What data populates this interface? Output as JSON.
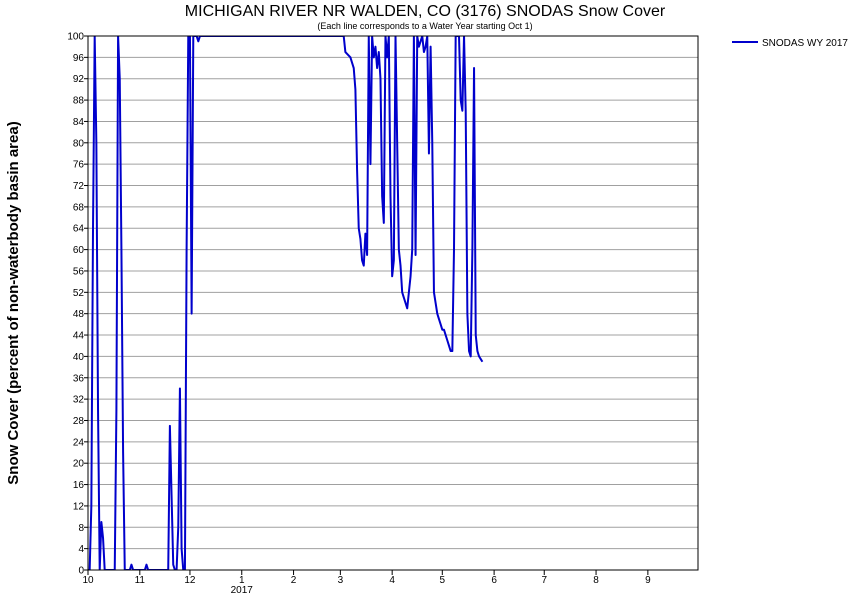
{
  "chart_data": {
    "type": "line",
    "title": "MICHIGAN RIVER NR WALDEN, CO (3176) SNODAS Snow Cover",
    "subtitle": "(Each line corresponds to a Water Year starting Oct 1)",
    "ylabel": "Snow Cover (percent of non-waterbody basin area)",
    "xlabel": "",
    "ylim": [
      0,
      100
    ],
    "xlim": [
      "2016-10-01",
      "2017-10-01"
    ],
    "y_ticks": [
      0,
      4,
      8,
      12,
      16,
      20,
      24,
      28,
      32,
      36,
      40,
      44,
      48,
      52,
      56,
      60,
      64,
      68,
      72,
      76,
      80,
      84,
      88,
      92,
      96,
      100
    ],
    "x_ticks": [
      {
        "date": "2016-10-01",
        "label": "10",
        "sublabel": ""
      },
      {
        "date": "2016-11-01",
        "label": "11",
        "sublabel": ""
      },
      {
        "date": "2016-12-01",
        "label": "12",
        "sublabel": ""
      },
      {
        "date": "2017-01-01",
        "label": "1",
        "sublabel": "2017"
      },
      {
        "date": "2017-02-01",
        "label": "2",
        "sublabel": ""
      },
      {
        "date": "2017-03-01",
        "label": "3",
        "sublabel": ""
      },
      {
        "date": "2017-04-01",
        "label": "4",
        "sublabel": ""
      },
      {
        "date": "2017-05-01",
        "label": "5",
        "sublabel": ""
      },
      {
        "date": "2017-06-01",
        "label": "6",
        "sublabel": ""
      },
      {
        "date": "2017-07-01",
        "label": "7",
        "sublabel": ""
      },
      {
        "date": "2017-08-01",
        "label": "8",
        "sublabel": ""
      },
      {
        "date": "2017-09-01",
        "label": "9",
        "sublabel": ""
      }
    ],
    "grid": true,
    "legend_position": "top-right",
    "series": [
      {
        "name": "SNODAS WY 2017",
        "color": "#0000cc",
        "points": [
          [
            "2016-10-01",
            0
          ],
          [
            "2016-10-02",
            0
          ],
          [
            "2016-10-03",
            12
          ],
          [
            "2016-10-04",
            64
          ],
          [
            "2016-10-05",
            100
          ],
          [
            "2016-10-06",
            80
          ],
          [
            "2016-10-07",
            30
          ],
          [
            "2016-10-08",
            0
          ],
          [
            "2016-10-09",
            9
          ],
          [
            "2016-10-10",
            6
          ],
          [
            "2016-10-11",
            0
          ],
          [
            "2016-10-12",
            0
          ],
          [
            "2016-10-13",
            0
          ],
          [
            "2016-10-14",
            0
          ],
          [
            "2016-10-15",
            0
          ],
          [
            "2016-10-16",
            0
          ],
          [
            "2016-10-17",
            0
          ],
          [
            "2016-10-18",
            30
          ],
          [
            "2016-10-19",
            100
          ],
          [
            "2016-10-20",
            92
          ],
          [
            "2016-10-21",
            60
          ],
          [
            "2016-10-22",
            22
          ],
          [
            "2016-10-23",
            0
          ],
          [
            "2016-10-24",
            0
          ],
          [
            "2016-10-25",
            0
          ],
          [
            "2016-10-26",
            0
          ],
          [
            "2016-10-27",
            1
          ],
          [
            "2016-10-28",
            0
          ],
          [
            "2016-10-29",
            0
          ],
          [
            "2016-10-30",
            0
          ],
          [
            "2016-10-31",
            0
          ],
          [
            "2016-11-01",
            0
          ],
          [
            "2016-11-02",
            0
          ],
          [
            "2016-11-03",
            0
          ],
          [
            "2016-11-04",
            0
          ],
          [
            "2016-11-05",
            1
          ],
          [
            "2016-11-06",
            0
          ],
          [
            "2016-11-07",
            0
          ],
          [
            "2016-11-08",
            0
          ],
          [
            "2016-11-09",
            0
          ],
          [
            "2016-11-10",
            0
          ],
          [
            "2016-11-11",
            0
          ],
          [
            "2016-11-12",
            0
          ],
          [
            "2016-11-13",
            0
          ],
          [
            "2016-11-14",
            0
          ],
          [
            "2016-11-15",
            0
          ],
          [
            "2016-11-16",
            0
          ],
          [
            "2016-11-17",
            0
          ],
          [
            "2016-11-18",
            0
          ],
          [
            "2016-11-19",
            27
          ],
          [
            "2016-11-20",
            14
          ],
          [
            "2016-11-21",
            1
          ],
          [
            "2016-11-22",
            0
          ],
          [
            "2016-11-23",
            0
          ],
          [
            "2016-11-24",
            8
          ],
          [
            "2016-11-25",
            34
          ],
          [
            "2016-11-26",
            4
          ],
          [
            "2016-11-27",
            0
          ],
          [
            "2016-11-28",
            0
          ],
          [
            "2016-11-29",
            60
          ],
          [
            "2016-11-30",
            100
          ],
          [
            "2016-12-01",
            100
          ],
          [
            "2016-12-02",
            48
          ],
          [
            "2016-12-03",
            100
          ],
          [
            "2016-12-04",
            100
          ],
          [
            "2016-12-05",
            100
          ],
          [
            "2016-12-06",
            99
          ],
          [
            "2016-12-07",
            100
          ],
          [
            "2016-12-08",
            100
          ],
          [
            "2016-12-09",
            100
          ],
          [
            "2016-12-15",
            100
          ],
          [
            "2016-12-31",
            100
          ],
          [
            "2017-01-15",
            100
          ],
          [
            "2017-01-31",
            100
          ],
          [
            "2017-02-15",
            100
          ],
          [
            "2017-02-28",
            100
          ],
          [
            "2017-03-03",
            100
          ],
          [
            "2017-03-04",
            97
          ],
          [
            "2017-03-07",
            96
          ],
          [
            "2017-03-09",
            94
          ],
          [
            "2017-03-10",
            90
          ],
          [
            "2017-03-11",
            75
          ],
          [
            "2017-03-12",
            64
          ],
          [
            "2017-03-13",
            62
          ],
          [
            "2017-03-14",
            58
          ],
          [
            "2017-03-15",
            57
          ],
          [
            "2017-03-16",
            63
          ],
          [
            "2017-03-17",
            59
          ],
          [
            "2017-03-18",
            100
          ],
          [
            "2017-03-19",
            76
          ],
          [
            "2017-03-20",
            100
          ],
          [
            "2017-03-21",
            96
          ],
          [
            "2017-03-22",
            98
          ],
          [
            "2017-03-23",
            94
          ],
          [
            "2017-03-24",
            97
          ],
          [
            "2017-03-25",
            92
          ],
          [
            "2017-03-26",
            70
          ],
          [
            "2017-03-27",
            65
          ],
          [
            "2017-03-28",
            100
          ],
          [
            "2017-03-29",
            96
          ],
          [
            "2017-03-30",
            100
          ],
          [
            "2017-03-31",
            70
          ],
          [
            "2017-04-01",
            55
          ],
          [
            "2017-04-02",
            58
          ],
          [
            "2017-04-03",
            100
          ],
          [
            "2017-04-04",
            80
          ],
          [
            "2017-04-05",
            60
          ],
          [
            "2017-04-06",
            57
          ],
          [
            "2017-04-07",
            52
          ],
          [
            "2017-04-08",
            51
          ],
          [
            "2017-04-09",
            50
          ],
          [
            "2017-04-10",
            49
          ],
          [
            "2017-04-11",
            52
          ],
          [
            "2017-04-12",
            55
          ],
          [
            "2017-04-13",
            60
          ],
          [
            "2017-04-14",
            100
          ],
          [
            "2017-04-15",
            59
          ],
          [
            "2017-04-16",
            100
          ],
          [
            "2017-04-17",
            98
          ],
          [
            "2017-04-18",
            99
          ],
          [
            "2017-04-19",
            100
          ],
          [
            "2017-04-20",
            97
          ],
          [
            "2017-04-21",
            98
          ],
          [
            "2017-04-22",
            100
          ],
          [
            "2017-04-23",
            78
          ],
          [
            "2017-04-24",
            98
          ],
          [
            "2017-04-25",
            80
          ],
          [
            "2017-04-26",
            52
          ],
          [
            "2017-04-27",
            50
          ],
          [
            "2017-04-28",
            48
          ],
          [
            "2017-04-29",
            47
          ],
          [
            "2017-04-30",
            46
          ],
          [
            "2017-05-01",
            45
          ],
          [
            "2017-05-02",
            45
          ],
          [
            "2017-05-03",
            44
          ],
          [
            "2017-05-04",
            43
          ],
          [
            "2017-05-05",
            42
          ],
          [
            "2017-05-06",
            41
          ],
          [
            "2017-05-07",
            41
          ],
          [
            "2017-05-08",
            60
          ],
          [
            "2017-05-09",
            100
          ],
          [
            "2017-05-10",
            100
          ],
          [
            "2017-05-11",
            100
          ],
          [
            "2017-05-12",
            88
          ],
          [
            "2017-05-13",
            86
          ],
          [
            "2017-05-14",
            100
          ],
          [
            "2017-05-15",
            86
          ],
          [
            "2017-05-16",
            48
          ],
          [
            "2017-05-17",
            41
          ],
          [
            "2017-05-18",
            40
          ],
          [
            "2017-05-19",
            60
          ],
          [
            "2017-05-20",
            94
          ],
          [
            "2017-05-21",
            44
          ],
          [
            "2017-05-22",
            41
          ],
          [
            "2017-05-23",
            40
          ],
          [
            "2017-05-24",
            39.5
          ],
          [
            "2017-05-25",
            39
          ]
        ]
      }
    ]
  }
}
